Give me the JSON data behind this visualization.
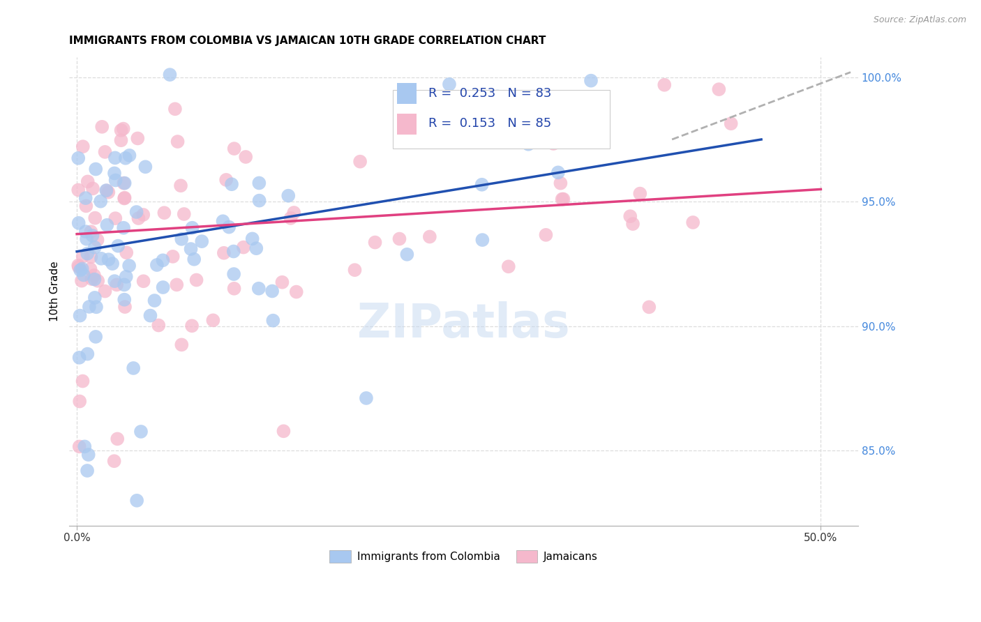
{
  "title": "IMMIGRANTS FROM COLOMBIA VS JAMAICAN 10TH GRADE CORRELATION CHART",
  "source": "Source: ZipAtlas.com",
  "ylabel": "10th Grade",
  "xlim": [
    -0.005,
    0.525
  ],
  "ylim": [
    0.82,
    1.008
  ],
  "xtick_positions": [
    0.0,
    0.5
  ],
  "xtick_labels": [
    "0.0%",
    "50.0%"
  ],
  "ytick_positions": [
    0.85,
    0.9,
    0.95,
    1.0
  ],
  "ytick_labels": [
    "85.0%",
    "90.0%",
    "95.0%",
    "100.0%"
  ],
  "legend_label_blue": "Immigrants from Colombia",
  "legend_label_pink": "Jamaicans",
  "blue_color": "#a8c8f0",
  "pink_color": "#f5b8cc",
  "blue_line_color": "#2050b0",
  "pink_line_color": "#e04080",
  "dash_color": "#b0b0b0",
  "R_blue": 0.253,
  "N_blue": 83,
  "R_pink": 0.153,
  "N_pink": 85,
  "watermark": "ZIPatlas",
  "blue_trend_x": [
    0.0,
    0.46
  ],
  "blue_trend_y": [
    0.93,
    0.975
  ],
  "pink_trend_x": [
    0.0,
    0.5
  ],
  "pink_trend_y": [
    0.937,
    0.955
  ],
  "dash_trend_x": [
    0.4,
    0.52
  ],
  "dash_trend_y": [
    0.975,
    1.002
  ],
  "grid_color": "#dddddd",
  "tick_label_color_y": "#4488dd",
  "tick_label_color_x": "#333333",
  "legend_box_color": "#e8f0ff",
  "legend_text_color": "#2244aa"
}
